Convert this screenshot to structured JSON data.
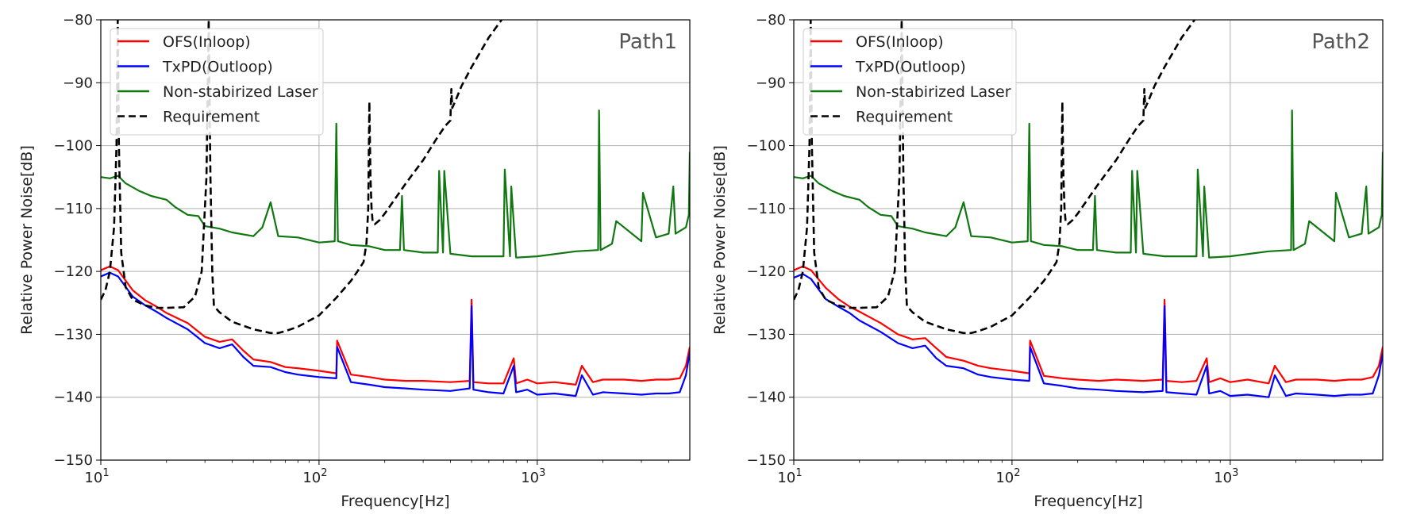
{
  "chart_data": [
    {
      "type": "line",
      "title": "Path1",
      "xlabel": "Frequency[Hz]",
      "ylabel": "Relative Power Noise[dB]",
      "xscale": "log",
      "xlim": [
        10,
        5000
      ],
      "ylim": [
        -150,
        -80
      ],
      "grid": true,
      "legend_position": "top-left",
      "x_ticks": [
        {
          "value": 10,
          "base": "10",
          "exp": "1"
        },
        {
          "value": 100,
          "base": "10",
          "exp": "2"
        },
        {
          "value": 1000,
          "base": "10",
          "exp": "3"
        }
      ],
      "y_ticks": [
        -80,
        -90,
        -100,
        -110,
        -120,
        -130,
        -140,
        -150
      ],
      "y_tick_labels": [
        "−80",
        "−90",
        "−100",
        "−110",
        "−120",
        "−130",
        "−140",
        "−150"
      ],
      "series": [
        {
          "name": "OFS(Inloop)",
          "color": "#ff0000",
          "dash": "solid",
          "x": [
            10,
            11,
            12,
            14,
            16,
            18,
            20,
            25,
            30,
            35,
            40,
            45,
            50,
            60,
            70,
            80,
            100,
            120,
            121,
            140,
            170,
            200,
            250,
            300,
            400,
            490,
            500,
            510,
            600,
            700,
            780,
            800,
            900,
            1000,
            1200,
            1500,
            1600,
            1800,
            2000,
            2500,
            3000,
            3500,
            4000,
            4500,
            4800,
            5000
          ],
          "y": [
            -119.8,
            -119.2,
            -119.8,
            -123.0,
            -124.6,
            -125.6,
            -126.6,
            -128.2,
            -130.4,
            -131.2,
            -130.8,
            -132.6,
            -134.0,
            -134.4,
            -135.2,
            -135.4,
            -135.8,
            -136.2,
            -131.0,
            -136.4,
            -136.8,
            -137.2,
            -137.4,
            -137.4,
            -137.6,
            -137.4,
            -124.5,
            -137.6,
            -137.8,
            -137.8,
            -133.8,
            -137.8,
            -137.2,
            -137.8,
            -137.6,
            -138.0,
            -135.0,
            -137.6,
            -137.2,
            -137.2,
            -137.4,
            -137.2,
            -137.2,
            -137.0,
            -135.0,
            -132.0
          ]
        },
        {
          "name": "TxPD(Outloop)",
          "color": "#0000ff",
          "dash": "solid",
          "x": [
            10,
            11,
            12,
            14,
            16,
            18,
            20,
            25,
            30,
            35,
            40,
            45,
            50,
            60,
            70,
            80,
            100,
            120,
            121,
            140,
            170,
            200,
            250,
            300,
            400,
            490,
            500,
            510,
            600,
            700,
            780,
            800,
            900,
            1000,
            1200,
            1500,
            1600,
            1800,
            2000,
            2500,
            3000,
            3500,
            4000,
            4500,
            4800,
            5000
          ],
          "y": [
            -120.8,
            -120.2,
            -120.8,
            -124.0,
            -125.4,
            -126.4,
            -127.4,
            -129.2,
            -131.4,
            -132.2,
            -131.6,
            -133.6,
            -135.0,
            -135.2,
            -136.0,
            -136.4,
            -136.8,
            -137.0,
            -132.0,
            -137.6,
            -138.0,
            -138.4,
            -138.6,
            -138.8,
            -139.0,
            -138.6,
            -125.5,
            -138.8,
            -139.2,
            -139.4,
            -135.0,
            -139.2,
            -138.8,
            -139.6,
            -139.4,
            -139.8,
            -136.5,
            -139.6,
            -139.2,
            -139.4,
            -139.6,
            -139.4,
            -139.4,
            -139.2,
            -136.5,
            -132.8
          ]
        },
        {
          "name": "Non-stabirized Laser",
          "color": "#117711",
          "dash": "solid",
          "x": [
            10,
            11,
            12,
            13,
            15,
            17,
            20,
            22,
            25,
            28,
            30,
            35,
            40,
            50,
            55,
            60,
            65,
            80,
            100,
            118,
            120,
            122,
            140,
            170,
            200,
            235,
            240,
            245,
            300,
            350,
            355,
            370,
            375,
            400,
            500,
            700,
            710,
            750,
            760,
            800,
            1000,
            1500,
            1900,
            1920,
            1950,
            2200,
            2300,
            3000,
            3050,
            3500,
            4000,
            4200,
            4300,
            4800,
            4950,
            5000
          ],
          "y": [
            -105.0,
            -105.2,
            -104.8,
            -106.0,
            -107.2,
            -108.0,
            -108.6,
            -109.8,
            -111.0,
            -111.2,
            -112.8,
            -113.2,
            -113.8,
            -114.4,
            -113.0,
            -109.0,
            -114.4,
            -114.6,
            -115.4,
            -115.2,
            -96.5,
            -115.2,
            -115.8,
            -116.0,
            -116.6,
            -116.6,
            -108.0,
            -116.6,
            -117.0,
            -117.0,
            -104.0,
            -117.0,
            -104.0,
            -117.2,
            -117.6,
            -117.6,
            -103.8,
            -117.6,
            -106.5,
            -117.8,
            -117.6,
            -116.8,
            -116.6,
            -94.4,
            -116.6,
            -115.6,
            -112.0,
            -115.2,
            -107.5,
            -114.6,
            -114.0,
            -106.5,
            -114.0,
            -113.0,
            -111.0,
            -101.0
          ]
        },
        {
          "name": "Requirement",
          "color": "#000000",
          "dash": "dashed",
          "x": [
            10,
            10.5,
            11,
            11.5,
            11.8,
            11.95,
            12.1,
            12.4,
            13,
            14,
            16,
            18,
            20,
            24,
            27,
            29,
            30.5,
            31.2,
            31.8,
            32.4,
            33,
            35,
            40,
            50,
            60,
            65,
            70,
            80,
            100,
            120,
            140,
            150,
            160,
            165,
            168,
            170,
            172,
            174,
            176,
            180,
            190,
            200,
            250,
            300,
            350,
            380,
            400,
            404,
            408,
            420,
            450,
            500,
            600,
            700
          ],
          "y": [
            -124.5,
            -123.0,
            -120.0,
            -113.0,
            -100.0,
            -80.0,
            -100.0,
            -117.0,
            -122.5,
            -124.5,
            -125.4,
            -125.8,
            -125.8,
            -125.7,
            -124.0,
            -120.0,
            -105.0,
            -80.0,
            -105.0,
            -120.0,
            -125.5,
            -126.5,
            -128.0,
            -129.2,
            -129.8,
            -129.8,
            -129.5,
            -128.8,
            -127.0,
            -124.2,
            -121.5,
            -120.0,
            -118.5,
            -115.5,
            -110.0,
            -93.0,
            -105.0,
            -110.0,
            -112.0,
            -112.5,
            -111.8,
            -110.8,
            -106.0,
            -102.3,
            -98.6,
            -96.8,
            -96.0,
            -91.0,
            -94.0,
            -93.0,
            -90.5,
            -87.5,
            -82.8,
            -79.6
          ]
        }
      ]
    },
    {
      "type": "line",
      "title": "Path2",
      "xlabel": "Frequency[Hz]",
      "ylabel": "Relative Power Noise[dB]",
      "xscale": "log",
      "xlim": [
        10,
        5000
      ],
      "ylim": [
        -150,
        -80
      ],
      "grid": true,
      "legend_position": "top-left",
      "x_ticks": [
        {
          "value": 10,
          "base": "10",
          "exp": "1"
        },
        {
          "value": 100,
          "base": "10",
          "exp": "2"
        },
        {
          "value": 1000,
          "base": "10",
          "exp": "3"
        }
      ],
      "y_ticks": [
        -80,
        -90,
        -100,
        -110,
        -120,
        -130,
        -140,
        -150
      ],
      "y_tick_labels": [
        "−80",
        "−90",
        "−100",
        "−110",
        "−120",
        "−130",
        "−140",
        "−150"
      ],
      "series": [
        {
          "name": "OFS(Inloop)",
          "color": "#ff0000",
          "dash": "solid",
          "x": [
            10,
            11,
            12,
            14,
            16,
            18,
            20,
            25,
            30,
            35,
            40,
            45,
            50,
            60,
            70,
            80,
            100,
            120,
            121,
            140,
            170,
            200,
            250,
            300,
            400,
            490,
            500,
            510,
            600,
            700,
            780,
            800,
            900,
            1000,
            1200,
            1500,
            1600,
            1800,
            2000,
            2500,
            3000,
            3500,
            4000,
            4500,
            4800,
            5000
          ],
          "y": [
            -119.8,
            -119.2,
            -119.8,
            -122.6,
            -124.4,
            -125.6,
            -126.4,
            -128.2,
            -130.0,
            -130.8,
            -130.6,
            -132.2,
            -133.6,
            -134.2,
            -135.0,
            -135.4,
            -135.8,
            -136.2,
            -131.0,
            -136.6,
            -137.0,
            -137.2,
            -137.4,
            -137.2,
            -137.4,
            -137.2,
            -124.5,
            -137.4,
            -137.6,
            -137.4,
            -133.8,
            -137.6,
            -137.0,
            -137.6,
            -137.2,
            -137.8,
            -135.0,
            -137.6,
            -137.2,
            -137.2,
            -137.4,
            -137.2,
            -137.2,
            -136.8,
            -135.0,
            -132.0
          ]
        },
        {
          "name": "TxPD(Outloop)",
          "color": "#0000ff",
          "dash": "solid",
          "x": [
            10,
            11,
            12,
            14,
            16,
            18,
            20,
            25,
            30,
            35,
            40,
            45,
            50,
            60,
            70,
            80,
            100,
            120,
            121,
            140,
            170,
            200,
            250,
            300,
            400,
            490,
            500,
            510,
            600,
            700,
            780,
            800,
            900,
            1000,
            1200,
            1500,
            1600,
            1800,
            2000,
            2500,
            3000,
            3500,
            4000,
            4500,
            4800,
            5000
          ],
          "y": [
            -121.0,
            -120.4,
            -121.2,
            -124.4,
            -125.6,
            -126.6,
            -127.8,
            -129.6,
            -131.4,
            -132.2,
            -131.8,
            -133.8,
            -135.0,
            -135.4,
            -136.4,
            -136.8,
            -137.2,
            -137.4,
            -132.0,
            -137.8,
            -138.2,
            -138.6,
            -138.8,
            -139.0,
            -139.2,
            -139.0,
            -125.5,
            -139.2,
            -139.4,
            -139.6,
            -135.0,
            -139.4,
            -139.0,
            -139.8,
            -139.6,
            -140.0,
            -136.5,
            -139.8,
            -139.4,
            -139.6,
            -139.8,
            -139.6,
            -139.6,
            -139.4,
            -136.5,
            -133.0
          ]
        },
        {
          "name": "Non-stabirized Laser",
          "color": "#117711",
          "dash": "solid",
          "x": [
            10,
            11,
            12,
            13,
            15,
            17,
            20,
            22,
            25,
            28,
            30,
            35,
            40,
            50,
            55,
            60,
            65,
            80,
            100,
            118,
            120,
            122,
            140,
            170,
            200,
            235,
            240,
            245,
            300,
            350,
            355,
            370,
            375,
            400,
            500,
            700,
            710,
            750,
            760,
            800,
            1000,
            1500,
            1900,
            1920,
            1950,
            2200,
            2300,
            3000,
            3050,
            3500,
            4000,
            4200,
            4300,
            4800,
            4950,
            5000
          ],
          "y": [
            -105.0,
            -105.2,
            -104.8,
            -106.0,
            -107.2,
            -108.0,
            -108.6,
            -109.8,
            -111.0,
            -111.2,
            -112.8,
            -113.2,
            -113.8,
            -114.4,
            -113.0,
            -109.0,
            -114.4,
            -114.6,
            -115.4,
            -115.2,
            -96.5,
            -115.2,
            -115.8,
            -116.0,
            -116.6,
            -116.6,
            -108.0,
            -116.6,
            -117.0,
            -117.0,
            -104.0,
            -117.0,
            -104.0,
            -117.2,
            -117.6,
            -117.6,
            -103.8,
            -117.6,
            -106.5,
            -117.8,
            -117.6,
            -116.8,
            -116.6,
            -94.4,
            -116.6,
            -115.6,
            -112.0,
            -115.2,
            -107.5,
            -114.6,
            -114.0,
            -106.5,
            -114.0,
            -113.0,
            -111.0,
            -101.0
          ]
        },
        {
          "name": "Requirement",
          "color": "#000000",
          "dash": "dashed",
          "x": [
            10,
            10.5,
            11,
            11.5,
            11.8,
            11.95,
            12.1,
            12.4,
            13,
            14,
            16,
            18,
            20,
            24,
            27,
            29,
            30.5,
            31.2,
            31.8,
            32.4,
            33,
            35,
            40,
            50,
            60,
            65,
            70,
            80,
            100,
            120,
            140,
            150,
            160,
            165,
            168,
            170,
            172,
            174,
            176,
            180,
            190,
            200,
            250,
            300,
            350,
            380,
            400,
            404,
            408,
            420,
            450,
            500,
            600,
            700
          ],
          "y": [
            -124.5,
            -123.0,
            -120.0,
            -113.0,
            -100.0,
            -80.0,
            -100.0,
            -117.0,
            -122.5,
            -124.5,
            -125.4,
            -125.8,
            -125.8,
            -125.7,
            -124.0,
            -120.0,
            -105.0,
            -80.0,
            -105.0,
            -120.0,
            -125.5,
            -126.5,
            -128.0,
            -129.2,
            -129.8,
            -129.8,
            -129.5,
            -128.8,
            -127.0,
            -124.2,
            -121.5,
            -120.0,
            -118.5,
            -115.5,
            -110.0,
            -93.0,
            -105.0,
            -110.0,
            -112.0,
            -112.5,
            -111.8,
            -110.8,
            -106.0,
            -102.3,
            -98.6,
            -96.8,
            -96.0,
            -91.0,
            -94.0,
            -93.0,
            -90.5,
            -87.5,
            -82.8,
            -79.6
          ]
        }
      ]
    }
  ]
}
